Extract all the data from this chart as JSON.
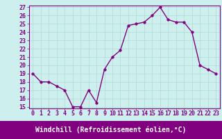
{
  "x": [
    0,
    1,
    2,
    3,
    4,
    5,
    6,
    7,
    8,
    9,
    10,
    11,
    12,
    13,
    14,
    15,
    16,
    17,
    18,
    19,
    20,
    21,
    22,
    23
  ],
  "y": [
    19,
    18,
    18,
    17.5,
    17,
    15,
    15,
    17,
    15.5,
    19.5,
    21,
    21.8,
    24.8,
    25.0,
    25.2,
    26.0,
    27.0,
    25.5,
    25.2,
    25.2,
    24.0,
    20.0,
    19.5,
    19.0
  ],
  "line_color": "#800080",
  "marker_color": "#800080",
  "bg_color": "#cdf0ee",
  "grid_color": "#b0d8d0",
  "bottom_bar_color": "#800080",
  "xlabel": "Windchill (Refroidissement éolien,°C)",
  "xlabel_color": "#ffffff",
  "tick_color": "#800080",
  "label_color": "#800080",
  "ylim": [
    15,
    27
  ],
  "xlim": [
    -0.5,
    23.5
  ],
  "yticks": [
    15,
    16,
    17,
    18,
    19,
    20,
    21,
    22,
    23,
    24,
    25,
    26,
    27
  ],
  "xticks": [
    0,
    1,
    2,
    3,
    4,
    5,
    6,
    7,
    8,
    9,
    10,
    11,
    12,
    13,
    14,
    15,
    16,
    17,
    18,
    19,
    20,
    21,
    22,
    23
  ],
  "xtick_labels": [
    "0",
    "1",
    "2",
    "3",
    "4",
    "5",
    "6",
    "7",
    "8",
    "9",
    "10",
    "11",
    "12",
    "13",
    "14",
    "15",
    "16",
    "17",
    "18",
    "19",
    "20",
    "21",
    "22",
    "23"
  ],
  "ytick_labels": [
    "15",
    "16",
    "17",
    "18",
    "19",
    "20",
    "21",
    "22",
    "23",
    "24",
    "25",
    "26",
    "27"
  ],
  "xlabel_fontsize": 7,
  "tick_fontsize": 6,
  "line_width": 1.0,
  "marker_size": 2.5
}
